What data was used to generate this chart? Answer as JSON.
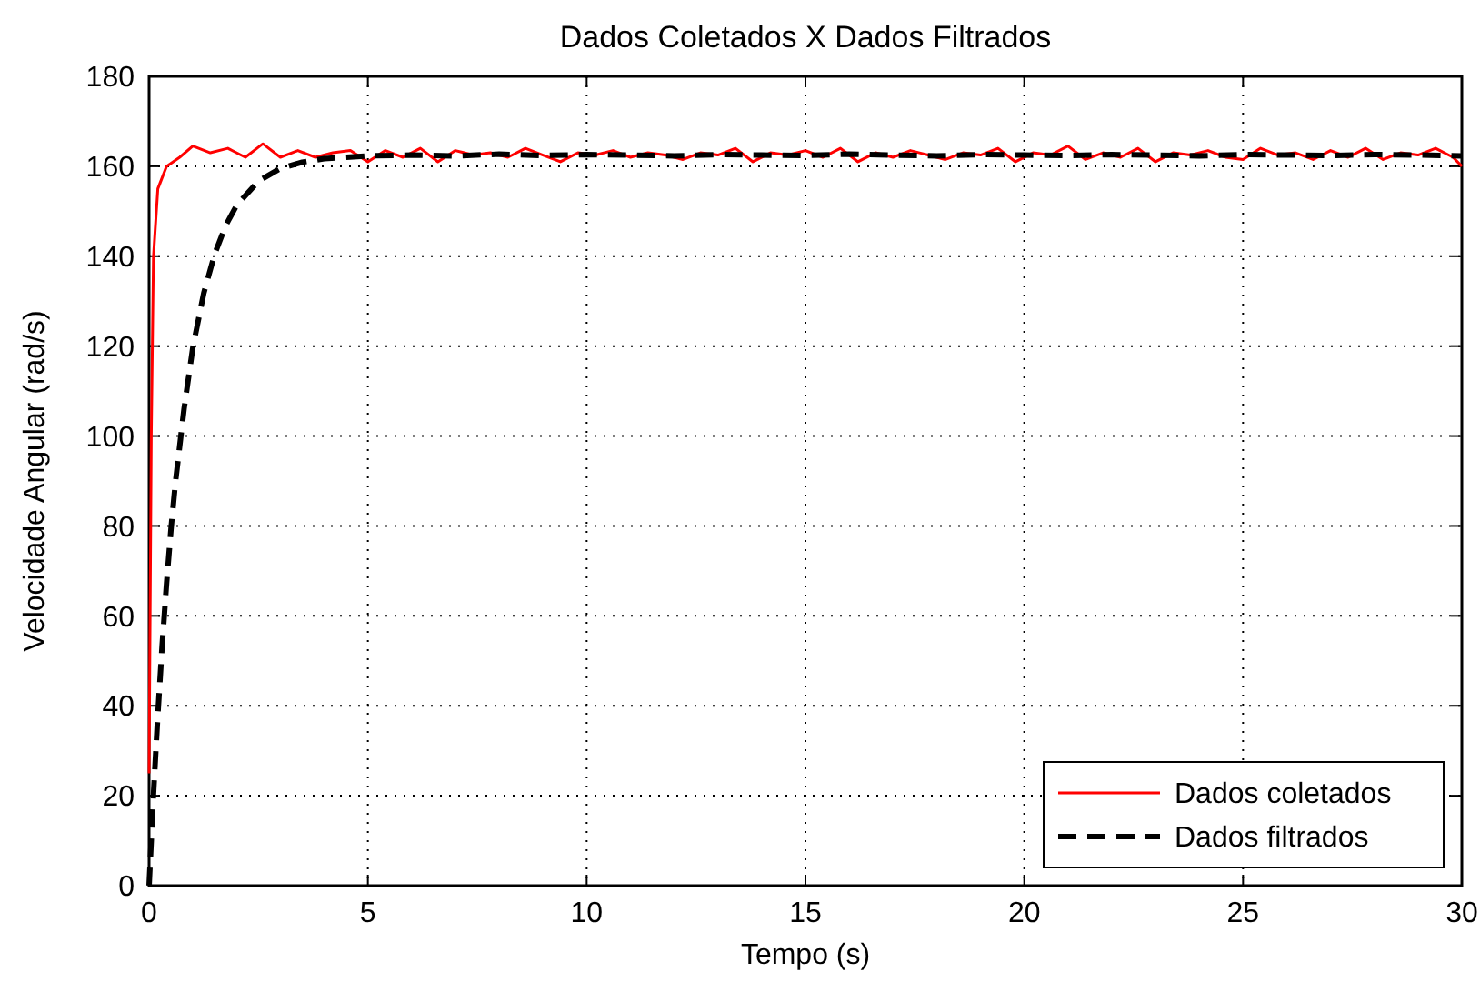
{
  "chart_data": {
    "type": "line",
    "title": "Dados Coletados X Dados Filtrados",
    "xlabel": "Tempo (s)",
    "ylabel": "Velocidade Angular (rad/s)",
    "xlim": [
      0,
      30
    ],
    "xticks": [
      0,
      5,
      10,
      15,
      20,
      25,
      30
    ],
    "ylim": [
      0,
      180
    ],
    "yticks": [
      0,
      20,
      40,
      60,
      80,
      100,
      120,
      140,
      160,
      180
    ],
    "grid": true,
    "legend": "bottom right",
    "marker": "none",
    "series": [
      {
        "name": "Dados coletados",
        "color": "#ff0000",
        "line_style": "solid",
        "x": [
          0,
          0.05,
          0.1,
          0.2,
          0.4,
          0.7,
          1.0,
          1.4,
          1.8,
          2.2,
          2.6,
          3.0,
          3.4,
          3.8,
          4.2,
          4.6,
          5.0,
          5.4,
          5.8,
          6.2,
          6.6,
          7.0,
          7.4,
          7.8,
          8.2,
          8.6,
          9.0,
          9.4,
          9.8,
          10.2,
          10.6,
          11.0,
          11.4,
          11.8,
          12.2,
          12.6,
          13.0,
          13.4,
          13.8,
          14.2,
          14.6,
          15.0,
          15.4,
          15.8,
          16.2,
          16.6,
          17.0,
          17.4,
          17.8,
          18.2,
          18.6,
          19.0,
          19.4,
          19.8,
          20.2,
          20.6,
          21.0,
          21.4,
          21.8,
          22.2,
          22.6,
          23.0,
          23.4,
          23.8,
          24.2,
          24.6,
          25.0,
          25.4,
          25.8,
          26.2,
          26.6,
          27.0,
          27.4,
          27.8,
          28.2,
          28.6,
          29.0,
          29.4,
          29.8,
          30
        ],
        "values": [
          25,
          100,
          140,
          155,
          160,
          162,
          164.5,
          163,
          164,
          162,
          165,
          162,
          163.5,
          162,
          163,
          163.5,
          161,
          163.5,
          162,
          164,
          161,
          163.5,
          162.5,
          163,
          162,
          164,
          162.5,
          161,
          163,
          162.5,
          163.5,
          162,
          163,
          162.5,
          161.5,
          163,
          162.5,
          164,
          161,
          163,
          162.5,
          163.5,
          162,
          164,
          161,
          163,
          162,
          163.5,
          162.5,
          161.5,
          163,
          162.5,
          164,
          161,
          163,
          162.5,
          164.5,
          161.5,
          163,
          162,
          164,
          161,
          163,
          162.5,
          163.5,
          162,
          161.5,
          164,
          162.5,
          163,
          161.5,
          163.5,
          162,
          164,
          161.5,
          163,
          162.5,
          164,
          162,
          160
        ]
      },
      {
        "name": "Dados filtrados",
        "color": "#000000",
        "line_style": "dashed",
        "x": [
          0,
          0.1,
          0.2,
          0.3,
          0.4,
          0.5,
          0.6,
          0.8,
          1.0,
          1.25,
          1.5,
          1.75,
          2,
          2.5,
          3,
          3.5,
          4,
          5,
          6,
          7,
          8,
          9,
          10,
          11,
          12,
          13,
          14,
          15,
          16,
          17,
          18,
          19,
          20,
          21,
          22,
          23,
          24,
          25,
          26,
          27,
          28,
          29,
          30
        ],
        "values": [
          0,
          20.3,
          38,
          53.6,
          67.3,
          79.2,
          89.5,
          106.1,
          119.7,
          131.8,
          140.5,
          146.8,
          151.3,
          156.7,
          159.5,
          160.9,
          161.7,
          162.3,
          162.5,
          162.3,
          162.7,
          162.4,
          162.6,
          162.5,
          162.3,
          162.6,
          162.5,
          162.4,
          162.7,
          162.5,
          162.3,
          162.6,
          162.5,
          162.4,
          162.6,
          162.5,
          162.3,
          162.6,
          162.5,
          162.4,
          162.6,
          162.5,
          162.3
        ]
      }
    ]
  }
}
